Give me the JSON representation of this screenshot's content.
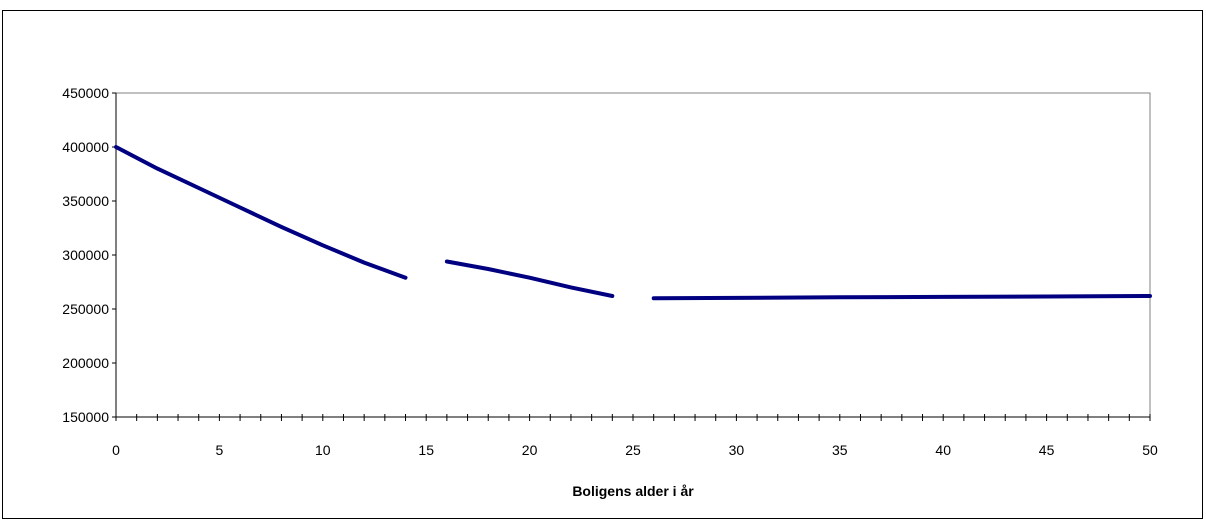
{
  "chart_data": {
    "type": "line",
    "title": "",
    "xlabel": "Boligens alder i år",
    "ylabel": "",
    "xlim": [
      0,
      50
    ],
    "ylim": [
      150000,
      450000
    ],
    "x_ticks": [
      "0",
      "5",
      "10",
      "15",
      "20",
      "25",
      "30",
      "35",
      "40",
      "45",
      "50"
    ],
    "y_ticks": [
      "150000",
      "200000",
      "250000",
      "300000",
      "350000",
      "400000",
      "450000"
    ],
    "x_minor_step": 1,
    "grid": false,
    "legend": "none",
    "line_color": "#000080",
    "series": [
      {
        "segments": [
          [
            [
              0,
              400000
            ],
            [
              2,
              380000
            ],
            [
              4,
              362000
            ],
            [
              6,
              344000
            ],
            [
              8,
              326000
            ],
            [
              10,
              309000
            ],
            [
              12,
              293000
            ],
            [
              14,
              279000
            ]
          ],
          [
            [
              16,
              294000
            ],
            [
              18,
              287000
            ],
            [
              20,
              279000
            ],
            [
              22,
              270000
            ],
            [
              24,
              262000
            ]
          ],
          [
            [
              26,
              260000
            ],
            [
              30,
              260300
            ],
            [
              35,
              260800
            ],
            [
              40,
              261200
            ],
            [
              45,
              261600
            ],
            [
              50,
              262000
            ]
          ]
        ]
      }
    ]
  }
}
